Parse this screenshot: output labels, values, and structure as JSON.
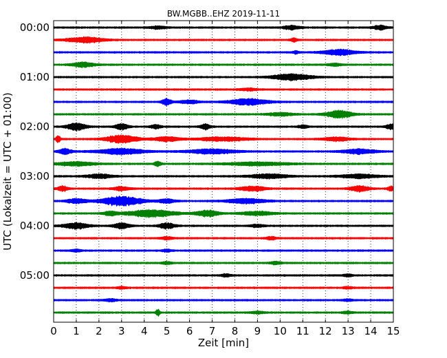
{
  "chart_data": {
    "type": "line",
    "title": "BW.MGBB..EHZ 2019-11-11",
    "xlabel": "Zeit  [min]",
    "ylabel": "UTC (Lokalzeit = UTC + 01:00)",
    "xlim": [
      0,
      15
    ],
    "x_ticks": [
      "0",
      "1",
      "2",
      "3",
      "4",
      "5",
      "6",
      "7",
      "8",
      "9",
      "10",
      "11",
      "12",
      "13",
      "14",
      "15"
    ],
    "y_ticks": [
      "00:00",
      "01:00",
      "02:00",
      "03:00",
      "04:00",
      "05:00"
    ],
    "grid": "vertical dotted lines at each minute",
    "trace_interval_minutes": 15,
    "trace_colors": [
      "#000000",
      "#ff0000",
      "#0000ff",
      "#008000"
    ],
    "series": [
      {
        "start": "00:00",
        "color": "#000000",
        "bursts": [
          {
            "t": 10.5,
            "amp": 2.5,
            "w": 0.5
          },
          {
            "t": 14.4,
            "amp": 3,
            "w": 0.4
          },
          {
            "t": 4.6,
            "amp": 1.6,
            "w": 0.5
          }
        ]
      },
      {
        "start": "00:15",
        "color": "#ff0000",
        "bursts": [
          {
            "t": 1.4,
            "amp": 3.5,
            "w": 1.1
          },
          {
            "t": 10.6,
            "amp": 2.2,
            "w": 0.2
          }
        ]
      },
      {
        "start": "00:30",
        "color": "#0000ff",
        "bursts": [
          {
            "t": 12.6,
            "amp": 3.5,
            "w": 1.0
          },
          {
            "t": 10.7,
            "amp": 1.8,
            "w": 0.2
          }
        ]
      },
      {
        "start": "00:45",
        "color": "#008000",
        "bursts": [
          {
            "t": 1.3,
            "amp": 3,
            "w": 0.7
          },
          {
            "t": 12.4,
            "amp": 1.6,
            "w": 0.4
          }
        ]
      },
      {
        "start": "01:00",
        "color": "#000000",
        "bursts": [
          {
            "t": 10.5,
            "amp": 4,
            "w": 1.2
          }
        ]
      },
      {
        "start": "01:15",
        "color": "#ff0000",
        "bursts": [
          {
            "t": 8.6,
            "amp": 1.5,
            "w": 0.5
          }
        ]
      },
      {
        "start": "01:30",
        "color": "#0000ff",
        "bursts": [
          {
            "t": 5.0,
            "amp": 4,
            "w": 0.3
          },
          {
            "t": 8.6,
            "amp": 4,
            "w": 1.2
          },
          {
            "t": 6.0,
            "amp": 2,
            "w": 0.6
          }
        ]
      },
      {
        "start": "01:45",
        "color": "#008000",
        "bursts": [
          {
            "t": 12.6,
            "amp": 5,
            "w": 0.8
          },
          {
            "t": 10.0,
            "amp": 2,
            "w": 0.8
          }
        ]
      },
      {
        "start": "02:00",
        "color": "#000000",
        "bursts": [
          {
            "t": 1.0,
            "amp": 4.5,
            "w": 0.6
          },
          {
            "t": 3.0,
            "amp": 4,
            "w": 0.4
          },
          {
            "t": 6.7,
            "amp": 3.5,
            "w": 0.3
          },
          {
            "t": 14.9,
            "amp": 3.5,
            "w": 0.3
          },
          {
            "t": 4.5,
            "amp": 2.5,
            "w": 0.3
          },
          {
            "t": 11.0,
            "amp": 2.0,
            "w": 0.3
          }
        ]
      },
      {
        "start": "02:15",
        "color": "#ff0000",
        "bursts": [
          {
            "t": 0.2,
            "amp": 4.5,
            "w": 0.15
          },
          {
            "t": 3.0,
            "amp": 5,
            "w": 1.0
          },
          {
            "t": 5.0,
            "amp": 3,
            "w": 0.8
          },
          {
            "t": 7.5,
            "amp": 2.5,
            "w": 1.5
          },
          {
            "t": 12.5,
            "amp": 2.5,
            "w": 0.8
          }
        ]
      },
      {
        "start": "02:30",
        "color": "#0000ff",
        "bursts": [
          {
            "t": 0.5,
            "amp": 3.5,
            "w": 0.4
          },
          {
            "t": 3.0,
            "amp": 3.5,
            "w": 1.5
          },
          {
            "t": 7.0,
            "amp": 3,
            "w": 1.5
          },
          {
            "t": 13.5,
            "amp": 3,
            "w": 1.0
          }
        ]
      },
      {
        "start": "02:45",
        "color": "#008000",
        "bursts": [
          {
            "t": 1.0,
            "amp": 2.5,
            "w": 1.2
          },
          {
            "t": 4.6,
            "amp": 3.5,
            "w": 0.2
          },
          {
            "t": 9.0,
            "amp": 2,
            "w": 2.0
          }
        ]
      },
      {
        "start": "03:00",
        "color": "#000000",
        "bursts": [
          {
            "t": 2.0,
            "amp": 2.8,
            "w": 0.8
          },
          {
            "t": 9.5,
            "amp": 2.8,
            "w": 1.2
          },
          {
            "t": 13.5,
            "amp": 2.5,
            "w": 1.2
          }
        ]
      },
      {
        "start": "03:15",
        "color": "#ff0000",
        "bursts": [
          {
            "t": 0.4,
            "amp": 3.5,
            "w": 0.3
          },
          {
            "t": 3.0,
            "amp": 2.5,
            "w": 0.5
          },
          {
            "t": 8.8,
            "amp": 3,
            "w": 0.8
          },
          {
            "t": 13.5,
            "amp": 3.5,
            "w": 0.6
          },
          {
            "t": 14.9,
            "amp": 3.5,
            "w": 0.2
          }
        ]
      },
      {
        "start": "03:30",
        "color": "#0000ff",
        "bursts": [
          {
            "t": 3.0,
            "amp": 6,
            "w": 1.3
          },
          {
            "t": 1.0,
            "amp": 3,
            "w": 0.6
          },
          {
            "t": 5.0,
            "amp": 2.5,
            "w": 0.5
          },
          {
            "t": 8.5,
            "amp": 3,
            "w": 1.2
          }
        ]
      },
      {
        "start": "03:45",
        "color": "#008000",
        "bursts": [
          {
            "t": 4.3,
            "amp": 4.5,
            "w": 1.5
          },
          {
            "t": 6.8,
            "amp": 4,
            "w": 0.7
          },
          {
            "t": 2.5,
            "amp": 2.5,
            "w": 0.4
          },
          {
            "t": 9.0,
            "amp": 2.5,
            "w": 1.0
          }
        ]
      },
      {
        "start": "04:00",
        "color": "#000000",
        "bursts": [
          {
            "t": 1.0,
            "amp": 3.5,
            "w": 0.8
          },
          {
            "t": 3.0,
            "amp": 3.5,
            "w": 0.5
          },
          {
            "t": 5.0,
            "amp": 3.5,
            "w": 0.5
          },
          {
            "t": 9.0,
            "amp": 1.8,
            "w": 0.4
          }
        ]
      },
      {
        "start": "04:15",
        "color": "#ff0000",
        "bursts": [
          {
            "t": 5.0,
            "amp": 1.6,
            "w": 0.4
          },
          {
            "t": 9.6,
            "amp": 1.8,
            "w": 0.3
          }
        ]
      },
      {
        "start": "04:30",
        "color": "#0000ff",
        "bursts": [
          {
            "t": 1.0,
            "amp": 1.6,
            "w": 0.3
          },
          {
            "t": 5.0,
            "amp": 1.6,
            "w": 0.3
          }
        ]
      },
      {
        "start": "04:45",
        "color": "#008000",
        "bursts": [
          {
            "t": 5.0,
            "amp": 1.5,
            "w": 0.3
          },
          {
            "t": 9.8,
            "amp": 1.6,
            "w": 0.4
          }
        ]
      },
      {
        "start": "05:00",
        "color": "#000000",
        "bursts": [
          {
            "t": 7.6,
            "amp": 1.8,
            "w": 0.3
          },
          {
            "t": 13.0,
            "amp": 1.5,
            "w": 0.3
          }
        ]
      },
      {
        "start": "05:15",
        "color": "#ff0000",
        "bursts": [
          {
            "t": 3.0,
            "amp": 1.5,
            "w": 0.3
          },
          {
            "t": 13.0,
            "amp": 1.3,
            "w": 0.3
          }
        ]
      },
      {
        "start": "05:30",
        "color": "#0000ff",
        "bursts": [
          {
            "t": 2.5,
            "amp": 1.5,
            "w": 0.4
          },
          {
            "t": 13.0,
            "amp": 1.3,
            "w": 0.3
          }
        ]
      },
      {
        "start": "05:45",
        "color": "#008000",
        "bursts": [
          {
            "t": 4.6,
            "amp": 4,
            "w": 0.12
          },
          {
            "t": 9.0,
            "amp": 1.6,
            "w": 0.4
          },
          {
            "t": 13.0,
            "amp": 1.5,
            "w": 0.3
          }
        ]
      }
    ]
  }
}
